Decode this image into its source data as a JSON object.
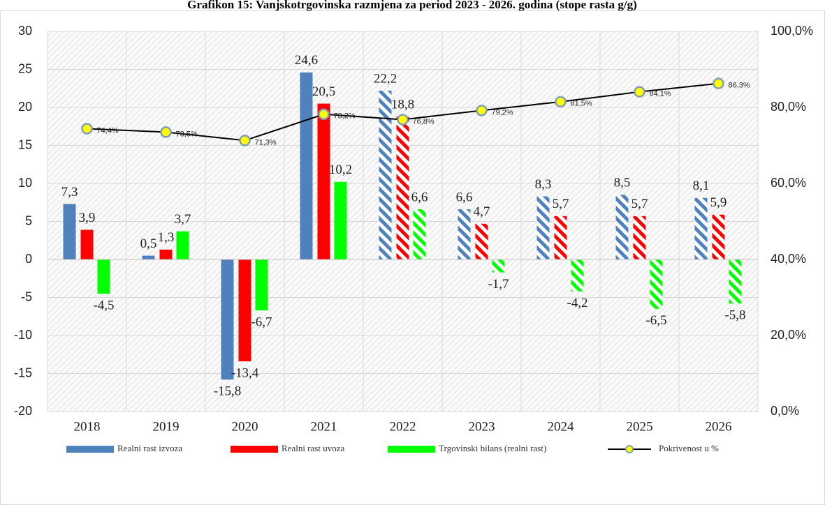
{
  "chart_data": {
    "type": "bar",
    "title": "Grafikon 15: Vanjskotrgovinska razmjena za period 2023 - 2026. godina (stope rasta g/g)",
    "categories": [
      "2018",
      "2019",
      "2020",
      "2021",
      "2022",
      "2023",
      "2024",
      "2025",
      "2026"
    ],
    "hatched": [
      false,
      false,
      false,
      false,
      true,
      true,
      true,
      true,
      true
    ],
    "ylim": [
      -20,
      30
    ],
    "yticks": [
      -20,
      -15,
      -10,
      -5,
      0,
      5,
      10,
      15,
      20,
      25,
      30
    ],
    "y2lim": [
      0,
      100
    ],
    "y2ticks": [
      {
        "value": 0,
        "label": "0,0%"
      },
      {
        "value": 20,
        "label": "20,0%"
      },
      {
        "value": 40,
        "label": "40,0%"
      },
      {
        "value": 60,
        "label": "60,0%"
      },
      {
        "value": 80,
        "label": "80,0%"
      },
      {
        "value": 100,
        "label": "100,0%"
      }
    ],
    "grid": true,
    "legend": "bottom",
    "series": [
      {
        "name": "Realni rast izvoza",
        "type": "bar",
        "color": "#4f81bd",
        "values": [
          7.3,
          0.5,
          -15.8,
          24.6,
          22.2,
          6.6,
          8.3,
          8.5,
          8.1
        ],
        "value_labels": [
          "7,3",
          "0,5",
          "-15,8",
          "24,6",
          "22,2",
          "6,6",
          "8,3",
          "8,5",
          "8,1"
        ]
      },
      {
        "name": "Realni rast uvoza",
        "type": "bar",
        "color": "#ff0000",
        "values": [
          3.9,
          1.3,
          -13.4,
          20.5,
          18.8,
          4.7,
          5.7,
          5.7,
          5.9
        ],
        "value_labels": [
          "3,9",
          "1,3",
          "-13,4",
          "20,5",
          "18,8",
          "4,7",
          "5,7",
          "5,7",
          "5,9"
        ]
      },
      {
        "name": "Trgovinski bilans (realni rast)",
        "type": "bar",
        "color": "#00ff00",
        "values": [
          -4.5,
          3.7,
          -6.7,
          10.2,
          6.6,
          -1.7,
          -4.2,
          -6.5,
          -5.8
        ],
        "value_labels": [
          "-4,5",
          "3,7",
          "-6,7",
          "10,2",
          "6,6",
          "-1,7",
          "-4,2",
          "-6,5",
          "-5,8"
        ]
      },
      {
        "name": "Pokrivenost u %",
        "type": "line",
        "axis": "y2",
        "color": "#000000",
        "marker_color": "#ffff00",
        "values": [
          74.4,
          73.5,
          71.3,
          78.2,
          76.8,
          79.2,
          81.5,
          84.1,
          86.3
        ],
        "value_labels": [
          "74,4%",
          "73,5%",
          "71,3%",
          "78,2%",
          "76,8%",
          "79,2%",
          "81,5%",
          "84,1%",
          "86,3%"
        ]
      }
    ]
  }
}
